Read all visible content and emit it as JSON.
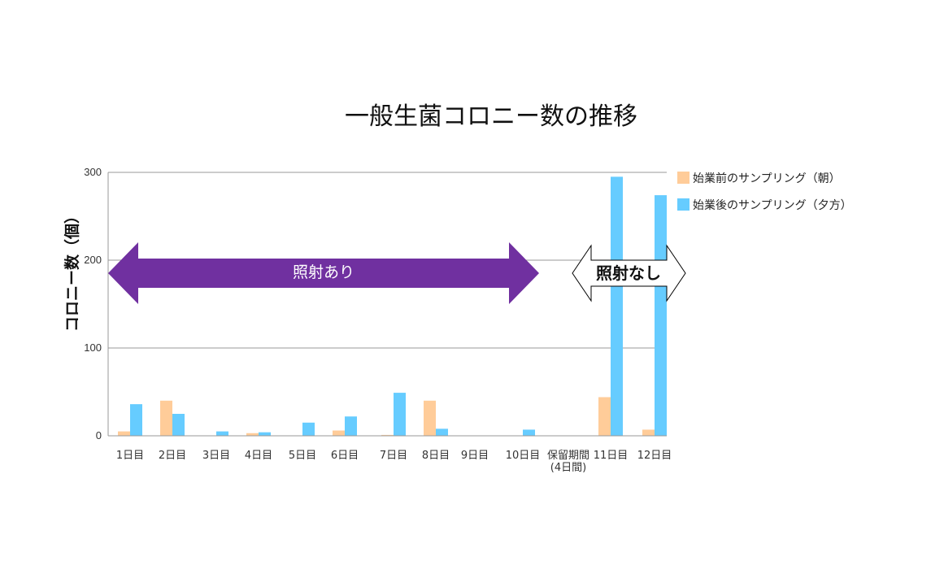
{
  "chart_data": {
    "type": "bar",
    "title": "一般生菌コロニー数の推移",
    "ylabel": "コロニー数（個）",
    "xlabel": "",
    "ylim": [
      0,
      300
    ],
    "yticks": [
      0,
      100,
      200,
      300
    ],
    "grid": true,
    "legend_position": "top-right",
    "categories": [
      "1日目",
      "2日目",
      "3日目",
      "4日目",
      "5日目",
      "6日目",
      "7日目",
      "8日目",
      "9日目",
      "10日目",
      "保留期間\n(4日間)",
      "11日目",
      "12日目"
    ],
    "series": [
      {
        "name": "始業前のサンプリング（朝）",
        "color": "#FFCC99",
        "values": [
          5,
          40,
          0,
          3,
          0,
          6,
          1,
          40,
          0,
          0,
          null,
          44,
          7
        ]
      },
      {
        "name": "始業後のサンプリング（夕方）",
        "color": "#66CCFF",
        "values": [
          36,
          25,
          5,
          4,
          15,
          22,
          49,
          8,
          0,
          7,
          null,
          295,
          274
        ]
      }
    ],
    "annotations": [
      {
        "label": "照射あり",
        "style": "double-arrow-filled",
        "color": "#7030A0",
        "span": [
          "1日目",
          "10日目"
        ]
      },
      {
        "label": "照射なし",
        "style": "double-arrow-outline",
        "color": "#000000",
        "span": [
          "11日目",
          "12日目"
        ]
      }
    ],
    "axis_color": "#999999",
    "grid_color": "#999999"
  }
}
